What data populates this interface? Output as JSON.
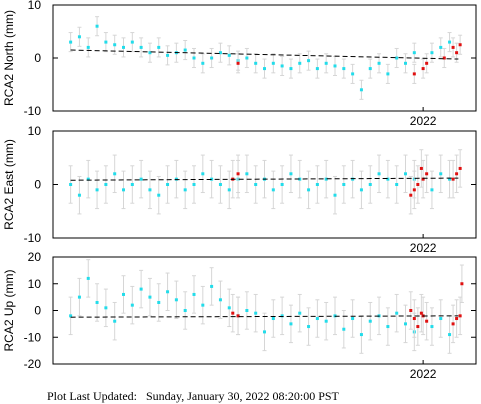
{
  "colors": {
    "series_normal": "#22dcea",
    "series_recent": "#e01010",
    "errorbar": "#d6d6d6",
    "trend": "#000000",
    "frame": "#000000"
  },
  "footer": {
    "label": "Plot Last Updated:",
    "value": "Sunday, January 30, 2022 08:20:00 PST"
  },
  "chart_data": [
    {
      "type": "scatter",
      "ylabel": "RCA2 North (mm)",
      "ylim": [
        -10,
        10
      ],
      "yticks": [
        -10,
        0,
        10
      ],
      "xlim": [
        2019.9,
        2022.3
      ],
      "xtick_labels": [
        {
          "x": 2022.0,
          "label": "2022"
        }
      ],
      "grid": false,
      "trend": {
        "x": [
          2020.0,
          2022.2
        ],
        "y": [
          1.5,
          -0.2
        ]
      },
      "error_bar_mm": 1.8,
      "series": [
        {
          "role": "normal",
          "x": [
            2020.0,
            2020.05,
            2020.1,
            2020.15,
            2020.2,
            2020.25,
            2020.3,
            2020.35,
            2020.4,
            2020.45,
            2020.5,
            2020.55,
            2020.6,
            2020.65,
            2020.7,
            2020.75,
            2020.8,
            2020.85,
            2020.9,
            2020.95,
            2021.0,
            2021.05,
            2021.1,
            2021.15,
            2021.2,
            2021.25,
            2021.3,
            2021.35,
            2021.4,
            2021.45,
            2021.5,
            2021.55,
            2021.6,
            2021.65,
            2021.7,
            2021.75,
            2021.8,
            2021.85,
            2021.9,
            2021.95,
            2022.05,
            2022.1,
            2022.15
          ],
          "y": [
            3,
            4,
            2,
            6,
            3,
            2.5,
            2,
            3,
            2,
            1,
            2,
            0.5,
            1,
            1.5,
            0,
            -1,
            0,
            1,
            0.5,
            -0.5,
            0,
            -1,
            -2,
            -1,
            -1.5,
            -2,
            -1,
            -0.5,
            -2,
            -1,
            -1.5,
            -2,
            -3,
            -6,
            -2,
            -1,
            -3,
            0,
            -1,
            1,
            1,
            2,
            3
          ]
        },
        {
          "role": "recent",
          "x": [
            2020.95,
            2021.95,
            2022.0,
            2022.02,
            2022.12,
            2022.17,
            2022.19,
            2022.21
          ],
          "y": [
            -1,
            -3,
            -2,
            -1,
            0,
            2,
            1,
            2.5
          ]
        }
      ]
    },
    {
      "type": "scatter",
      "ylabel": "RCA2 East (mm)",
      "ylim": [
        -10,
        10
      ],
      "yticks": [
        -10,
        0,
        10
      ],
      "xlim": [
        2019.9,
        2022.3
      ],
      "xtick_labels": [
        {
          "x": 2022.0,
          "label": "2022"
        }
      ],
      "grid": false,
      "trend": {
        "x": [
          2020.0,
          2022.2
        ],
        "y": [
          0.8,
          1.2
        ]
      },
      "error_bar_mm": 3.5,
      "series": [
        {
          "role": "normal",
          "x": [
            2020.0,
            2020.05,
            2020.1,
            2020.15,
            2020.2,
            2020.25,
            2020.3,
            2020.35,
            2020.4,
            2020.45,
            2020.5,
            2020.55,
            2020.6,
            2020.65,
            2020.7,
            2020.75,
            2020.8,
            2020.85,
            2020.9,
            2020.95,
            2021.0,
            2021.05,
            2021.1,
            2021.15,
            2021.2,
            2021.25,
            2021.3,
            2021.35,
            2021.4,
            2021.45,
            2021.5,
            2021.55,
            2021.6,
            2021.65,
            2021.7,
            2021.75,
            2021.8,
            2021.85,
            2021.9,
            2021.95,
            2022.05,
            2022.1,
            2022.15
          ],
          "y": [
            0,
            -2,
            1,
            -1,
            0,
            2,
            -1,
            0,
            1,
            -1,
            -2,
            0,
            1,
            -1,
            0,
            2,
            1,
            0,
            -1,
            1,
            2,
            0,
            1,
            -1,
            0,
            2,
            1,
            -1,
            0,
            1,
            -2,
            0,
            1,
            -1,
            0,
            2,
            1,
            0,
            2,
            1,
            -1,
            2,
            1
          ]
        },
        {
          "role": "recent",
          "x": [
            2020.92,
            2020.95,
            2021.93,
            2021.95,
            2021.97,
            2021.99,
            2022.0,
            2022.02,
            2022.17,
            2022.19,
            2022.21
          ],
          "y": [
            1,
            2,
            -2,
            -1,
            0,
            3,
            1,
            2,
            1,
            2,
            3
          ]
        }
      ]
    },
    {
      "type": "scatter",
      "ylabel": "RCA2 Up (mm)",
      "ylim": [
        -20,
        20
      ],
      "yticks": [
        -20,
        -10,
        0,
        10,
        20
      ],
      "xlim": [
        2019.9,
        2022.3
      ],
      "xtick_labels": [
        {
          "x": 2022.0,
          "label": "2022"
        }
      ],
      "grid": false,
      "trend": {
        "x": [
          2020.0,
          2022.2
        ],
        "y": [
          -2.5,
          -2.0
        ]
      },
      "error_bar_mm": 7,
      "series": [
        {
          "role": "normal",
          "x": [
            2020.0,
            2020.05,
            2020.1,
            2020.15,
            2020.2,
            2020.25,
            2020.3,
            2020.35,
            2020.4,
            2020.45,
            2020.5,
            2020.55,
            2020.6,
            2020.65,
            2020.7,
            2020.75,
            2020.8,
            2020.85,
            2020.9,
            2020.95,
            2021.0,
            2021.05,
            2021.1,
            2021.15,
            2021.2,
            2021.25,
            2021.3,
            2021.35,
            2021.4,
            2021.45,
            2021.5,
            2021.55,
            2021.6,
            2021.65,
            2021.7,
            2021.75,
            2021.8,
            2021.85,
            2021.9,
            2021.95,
            2022.05,
            2022.1,
            2022.15
          ],
          "y": [
            -2,
            5,
            12,
            3,
            1,
            -4,
            6,
            2,
            8,
            5,
            3,
            7,
            4,
            0,
            6,
            2,
            9,
            4,
            1,
            -2,
            0,
            -1,
            -8,
            -3,
            -2,
            -5,
            -1,
            -6,
            -3,
            -4,
            -2,
            -7,
            -3,
            -9,
            -4,
            -2,
            -6,
            -1,
            -5,
            -8,
            -6,
            -3,
            -9
          ]
        },
        {
          "role": "recent",
          "x": [
            2020.92,
            2020.95,
            2021.93,
            2021.95,
            2021.97,
            2021.99,
            2022.0,
            2022.02,
            2022.17,
            2022.19,
            2022.21,
            2022.22
          ],
          "y": [
            -1,
            -2,
            0,
            -3,
            -6,
            -1,
            -2,
            -4,
            -5,
            -3,
            -2,
            10
          ]
        }
      ]
    }
  ]
}
